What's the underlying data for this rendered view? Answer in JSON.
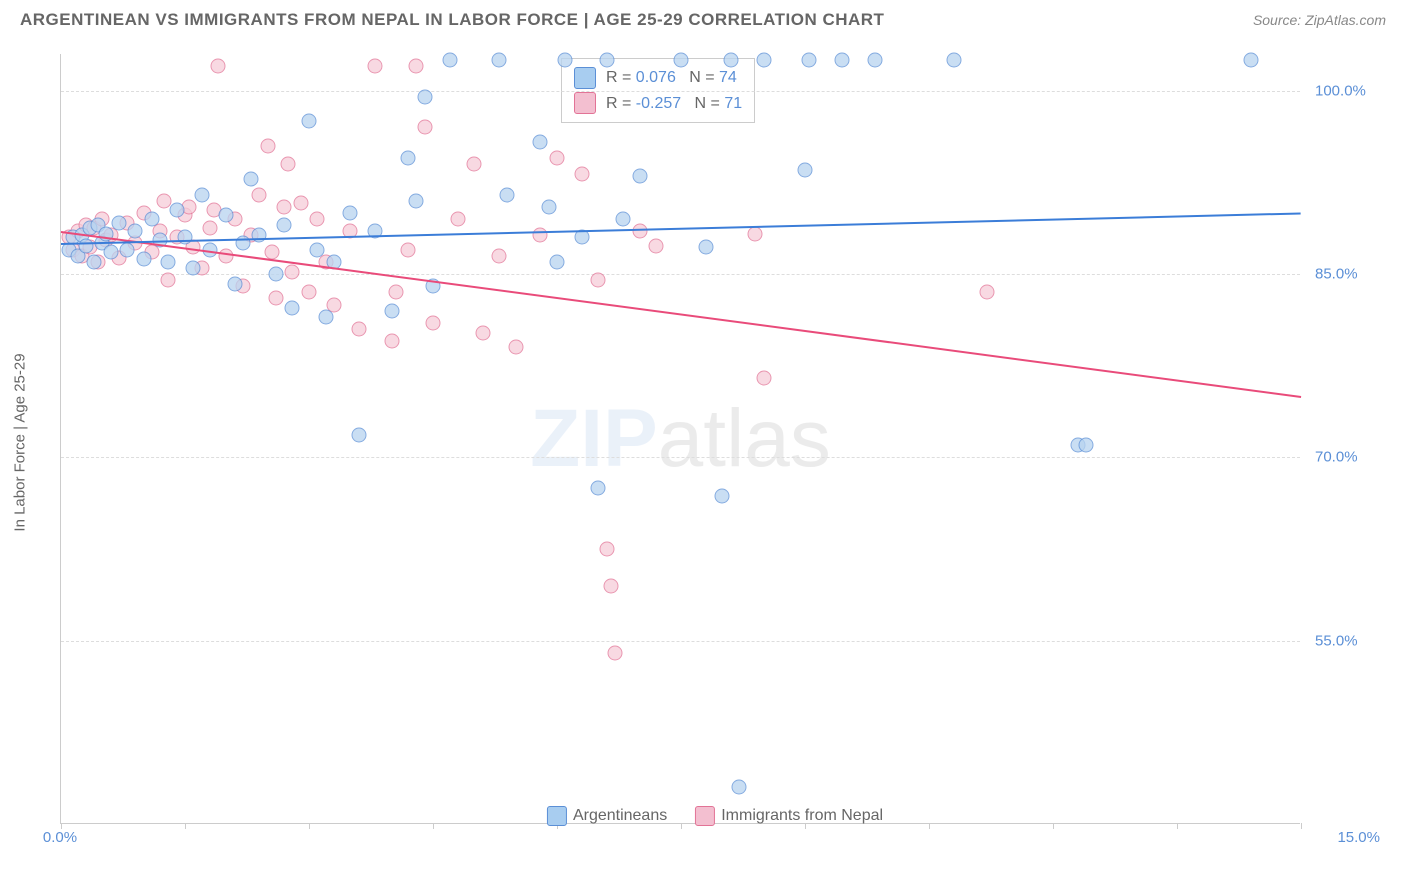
{
  "header": {
    "title": "ARGENTINEAN VS IMMIGRANTS FROM NEPAL IN LABOR FORCE | AGE 25-29 CORRELATION CHART",
    "source": "Source: ZipAtlas.com"
  },
  "chart": {
    "type": "scatter",
    "y_axis_label": "In Labor Force | Age 25-29",
    "x_domain": [
      0,
      15
    ],
    "y_domain": [
      40,
      103
    ],
    "y_ticks": [
      55,
      70,
      85,
      100
    ],
    "y_tick_labels": [
      "55.0%",
      "70.0%",
      "85.0%",
      "100.0%"
    ],
    "x_ticks": [
      0,
      1.5,
      3,
      4.5,
      6,
      7.5,
      9,
      10.5,
      12,
      13.5,
      15
    ],
    "x_end_labels": {
      "min": "0.0%",
      "max": "15.0%"
    },
    "series_a": {
      "name": "Argentineans",
      "color_fill": "#b8d4f0",
      "color_stroke": "#5b8fd6",
      "R": "0.076",
      "N": "74",
      "trend": {
        "x1": 0,
        "y1": 87.5,
        "x2": 15,
        "y2": 90.0,
        "color": "#3b7dd8"
      },
      "points": [
        [
          0.1,
          87
        ],
        [
          0.15,
          88
        ],
        [
          0.2,
          86.5
        ],
        [
          0.25,
          88.2
        ],
        [
          0.3,
          87.3
        ],
        [
          0.35,
          88.8
        ],
        [
          0.4,
          86
        ],
        [
          0.45,
          89
        ],
        [
          0.5,
          87.5
        ],
        [
          0.55,
          88.3
        ],
        [
          0.6,
          86.8
        ],
        [
          0.7,
          89.2
        ],
        [
          0.8,
          87
        ],
        [
          0.9,
          88.5
        ],
        [
          1.0,
          86.2
        ],
        [
          1.1,
          89.5
        ],
        [
          1.2,
          87.8
        ],
        [
          1.3,
          86
        ],
        [
          1.4,
          90.2
        ],
        [
          1.5,
          88
        ],
        [
          1.6,
          85.5
        ],
        [
          1.7,
          91.5
        ],
        [
          1.8,
          87
        ],
        [
          2.0,
          89.8
        ],
        [
          2.1,
          84.2
        ],
        [
          2.2,
          87.5
        ],
        [
          2.3,
          92.8
        ],
        [
          2.4,
          88.2
        ],
        [
          2.6,
          85
        ],
        [
          2.7,
          89
        ],
        [
          2.8,
          82.2
        ],
        [
          3.0,
          97.5
        ],
        [
          3.1,
          87
        ],
        [
          3.2,
          81.5
        ],
        [
          3.3,
          86
        ],
        [
          3.5,
          90
        ],
        [
          3.6,
          71.8
        ],
        [
          3.8,
          88.5
        ],
        [
          4.0,
          82
        ],
        [
          4.2,
          94.5
        ],
        [
          4.3,
          91
        ],
        [
          4.4,
          99.5
        ],
        [
          4.5,
          84
        ],
        [
          4.7,
          102.5
        ],
        [
          5.3,
          102.5
        ],
        [
          5.4,
          91.5
        ],
        [
          5.8,
          95.8
        ],
        [
          5.9,
          90.5
        ],
        [
          6.0,
          86
        ],
        [
          6.1,
          102.5
        ],
        [
          6.3,
          88
        ],
        [
          6.5,
          67.5
        ],
        [
          6.6,
          102.5
        ],
        [
          6.8,
          89.5
        ],
        [
          7.0,
          93
        ],
        [
          7.5,
          102.5
        ],
        [
          7.8,
          87.2
        ],
        [
          8.0,
          66.8
        ],
        [
          8.1,
          102.5
        ],
        [
          8.2,
          43
        ],
        [
          8.5,
          102.5
        ],
        [
          9.0,
          93.5
        ],
        [
          9.05,
          102.5
        ],
        [
          9.45,
          102.5
        ],
        [
          9.85,
          102.5
        ],
        [
          10.8,
          102.5
        ],
        [
          12.3,
          71
        ],
        [
          12.4,
          71
        ],
        [
          14.4,
          102.5
        ]
      ]
    },
    "series_b": {
      "name": "Immigrants from Nepal",
      "color_fill": "#f6cdd9",
      "color_stroke": "#e27396",
      "R": "-0.257",
      "N": "71",
      "trend": {
        "x1": 0,
        "y1": 88.5,
        "x2": 15,
        "y2": 75.0,
        "color": "#e94b7a"
      },
      "points": [
        [
          0.1,
          88
        ],
        [
          0.15,
          87
        ],
        [
          0.2,
          88.5
        ],
        [
          0.25,
          86.5
        ],
        [
          0.3,
          89
        ],
        [
          0.35,
          87.2
        ],
        [
          0.4,
          88.8
        ],
        [
          0.45,
          86
        ],
        [
          0.5,
          89.5
        ],
        [
          0.55,
          87.8
        ],
        [
          0.6,
          88.2
        ],
        [
          0.7,
          86.3
        ],
        [
          0.8,
          89.2
        ],
        [
          0.9,
          87.5
        ],
        [
          1.0,
          90
        ],
        [
          1.1,
          86.8
        ],
        [
          1.2,
          88.5
        ],
        [
          1.25,
          91
        ],
        [
          1.3,
          84.5
        ],
        [
          1.4,
          88
        ],
        [
          1.5,
          89.8
        ],
        [
          1.55,
          90.5
        ],
        [
          1.6,
          87.2
        ],
        [
          1.7,
          85.5
        ],
        [
          1.8,
          88.8
        ],
        [
          1.85,
          90.2
        ],
        [
          1.9,
          102
        ],
        [
          2.0,
          86.5
        ],
        [
          2.1,
          89.5
        ],
        [
          2.2,
          84
        ],
        [
          2.3,
          88.2
        ],
        [
          2.4,
          91.5
        ],
        [
          2.5,
          95.5
        ],
        [
          2.55,
          86.8
        ],
        [
          2.6,
          83
        ],
        [
          2.7,
          90.5
        ],
        [
          2.75,
          94
        ],
        [
          2.8,
          85.2
        ],
        [
          2.9,
          90.8
        ],
        [
          3.0,
          83.5
        ],
        [
          3.1,
          89.5
        ],
        [
          3.2,
          86
        ],
        [
          3.3,
          82.5
        ],
        [
          3.5,
          88.5
        ],
        [
          3.6,
          80.5
        ],
        [
          3.8,
          102
        ],
        [
          4.0,
          79.5
        ],
        [
          4.05,
          83.5
        ],
        [
          4.2,
          87
        ],
        [
          4.3,
          102
        ],
        [
          4.4,
          97
        ],
        [
          4.5,
          81
        ],
        [
          4.8,
          89.5
        ],
        [
          5.0,
          94
        ],
        [
          5.1,
          80.2
        ],
        [
          5.3,
          86.5
        ],
        [
          5.5,
          79
        ],
        [
          5.8,
          88.2
        ],
        [
          6.0,
          94.5
        ],
        [
          6.3,
          93.2
        ],
        [
          6.5,
          84.5
        ],
        [
          6.6,
          62.5
        ],
        [
          6.65,
          59.5
        ],
        [
          6.7,
          54
        ],
        [
          7.0,
          88.5
        ],
        [
          7.2,
          87.3
        ],
        [
          8.4,
          88.3
        ],
        [
          8.5,
          76.5
        ],
        [
          11.2,
          83.5
        ]
      ]
    },
    "legend_box": {
      "swatch_a_fill": "#a8cdf0",
      "swatch_a_stroke": "#5b8fd6",
      "swatch_b_fill": "#f3bfd0",
      "swatch_b_stroke": "#e27396",
      "r_label": "R =",
      "n_label": "N ="
    },
    "watermark": {
      "zip": "ZIP",
      "atlas": "atlas"
    }
  }
}
